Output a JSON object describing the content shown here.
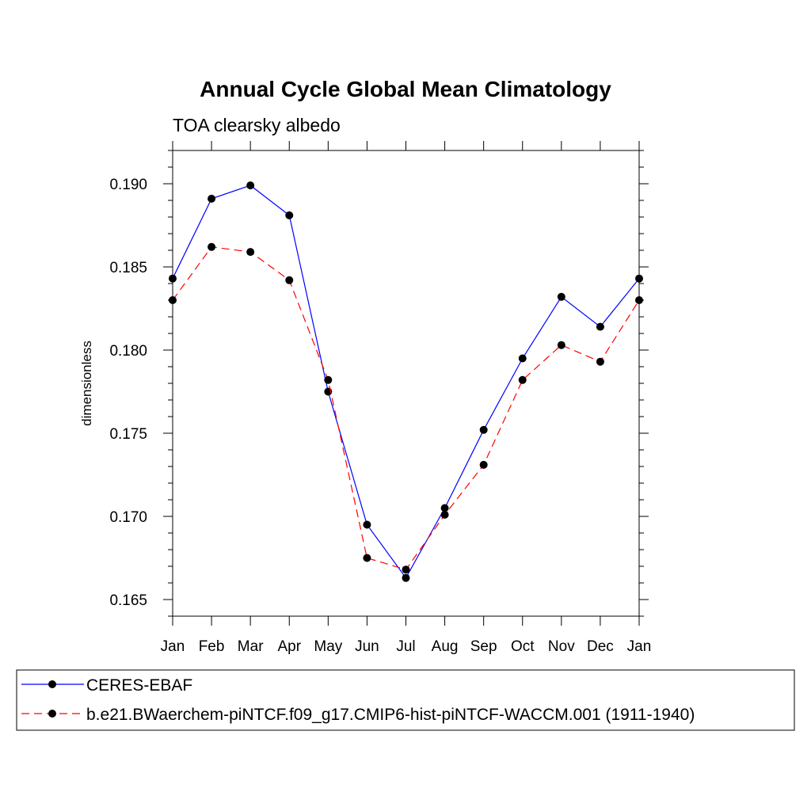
{
  "chart_data": {
    "type": "line",
    "title": "Annual Cycle Global Mean Climatology",
    "subtitle": "TOA clearsky albedo",
    "xlabel": "",
    "ylabel": "dimensionless",
    "categories": [
      "Jan",
      "Feb",
      "Mar",
      "Apr",
      "May",
      "Jun",
      "Jul",
      "Aug",
      "Sep",
      "Oct",
      "Nov",
      "Dec",
      "Jan"
    ],
    "ylim": [
      0.164,
      0.192
    ],
    "yticks": [
      "0.165",
      "0.170",
      "0.175",
      "0.180",
      "0.185",
      "0.190"
    ],
    "grid": false,
    "legend_position": "bottom",
    "series": [
      {
        "name": "CERES-EBAF",
        "color": "#0000ff",
        "line_style": "solid",
        "marker": "filled-circle",
        "values": [
          0.1843,
          0.1891,
          0.1899,
          0.1881,
          0.1775,
          0.1695,
          0.1663,
          0.1705,
          0.1752,
          0.1795,
          0.1832,
          0.1814,
          0.1843
        ]
      },
      {
        "name": "b.e21.BWaerchem-piNTCF.f09_g17.CMIP6-hist-piNTCF-WACCM.001 (1911-1940)",
        "color": "#ff0000",
        "line_style": "dashed",
        "marker": "filled-circle",
        "values": [
          0.183,
          0.1862,
          0.1859,
          0.1842,
          0.1782,
          0.1675,
          0.1668,
          0.1701,
          0.1731,
          0.1782,
          0.1803,
          0.1793,
          0.183
        ]
      }
    ]
  }
}
